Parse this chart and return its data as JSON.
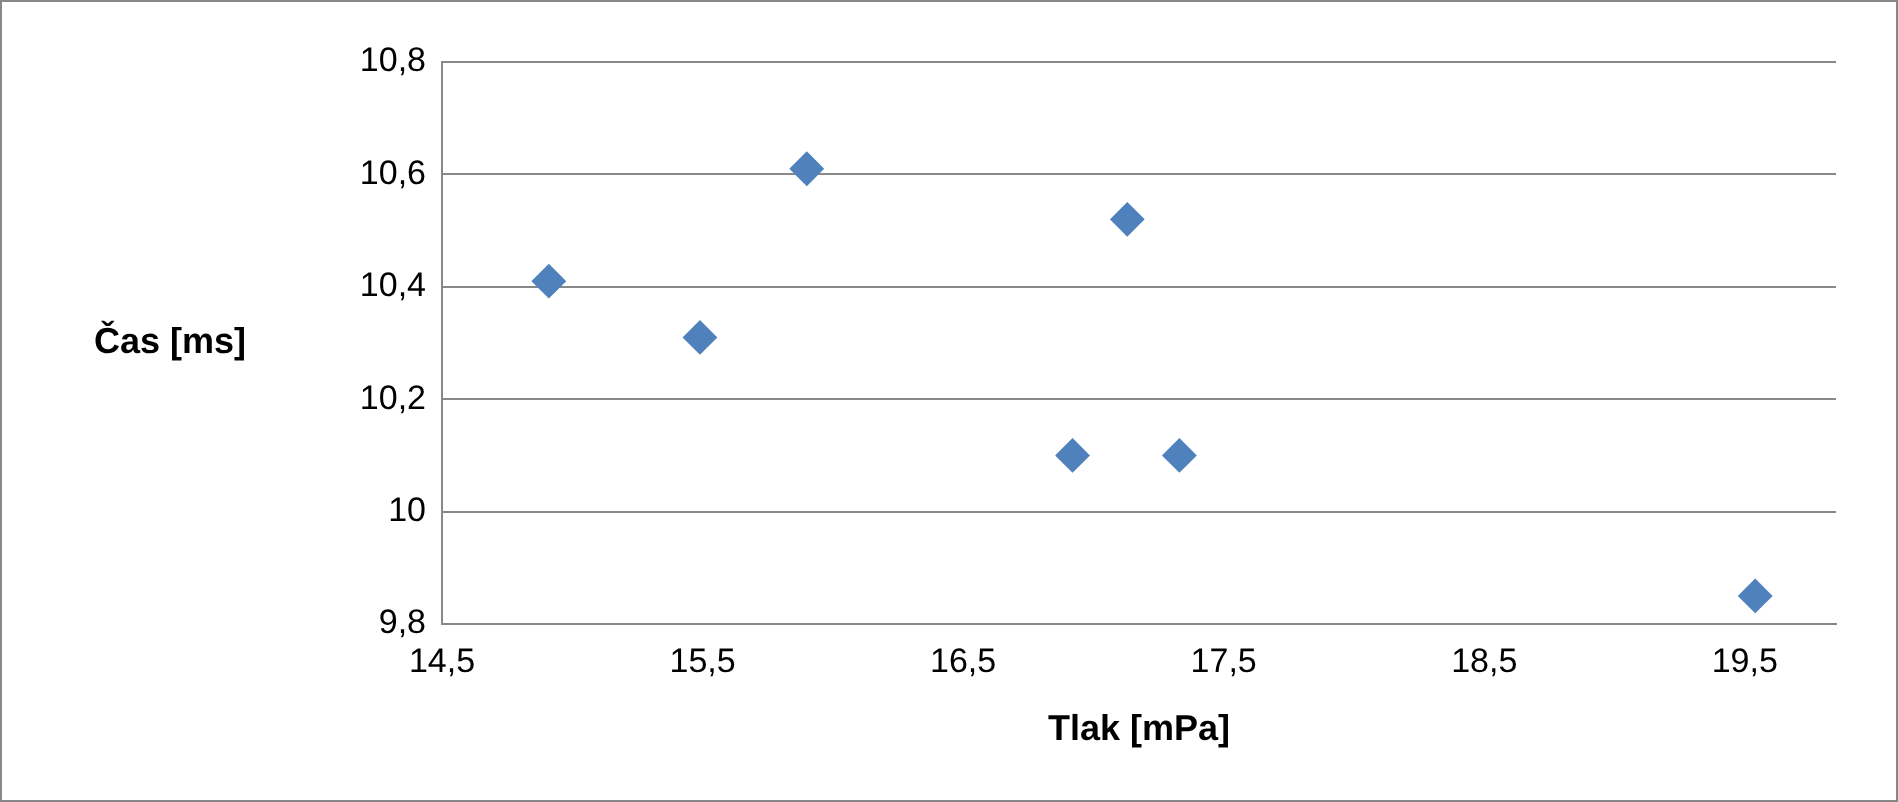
{
  "chart_data": {
    "type": "scatter",
    "xlabel": "Tlak [mPa]",
    "ylabel": "Čas [ms]",
    "x": [
      14.91,
      15.49,
      15.9,
      16.92,
      17.13,
      17.33,
      19.54
    ],
    "values": [
      10.41,
      10.31,
      10.61,
      10.1,
      10.52,
      10.1,
      9.85
    ],
    "color": "#4f81bd",
    "marker": "diamond",
    "grid": "y",
    "legend": false,
    "xlim": [
      14.5,
      19.85
    ],
    "xticks": [
      {
        "value": 14.5,
        "label": "14,5"
      },
      {
        "value": 15.5,
        "label": "15,5"
      },
      {
        "value": 16.5,
        "label": "16,5"
      },
      {
        "value": 17.5,
        "label": "17,5"
      },
      {
        "value": 18.5,
        "label": "18,5"
      },
      {
        "value": 19.5,
        "label": "19,5"
      }
    ],
    "ylim": [
      9.8,
      10.8
    ],
    "yticks": [
      {
        "value": 9.8,
        "label": "9,8"
      },
      {
        "value": 10,
        "label": "10"
      },
      {
        "value": 10.2,
        "label": "10,2"
      },
      {
        "value": 10.4,
        "label": "10,4"
      },
      {
        "value": 10.6,
        "label": "10,6"
      },
      {
        "value": 10.8,
        "label": "10,8"
      }
    ]
  }
}
